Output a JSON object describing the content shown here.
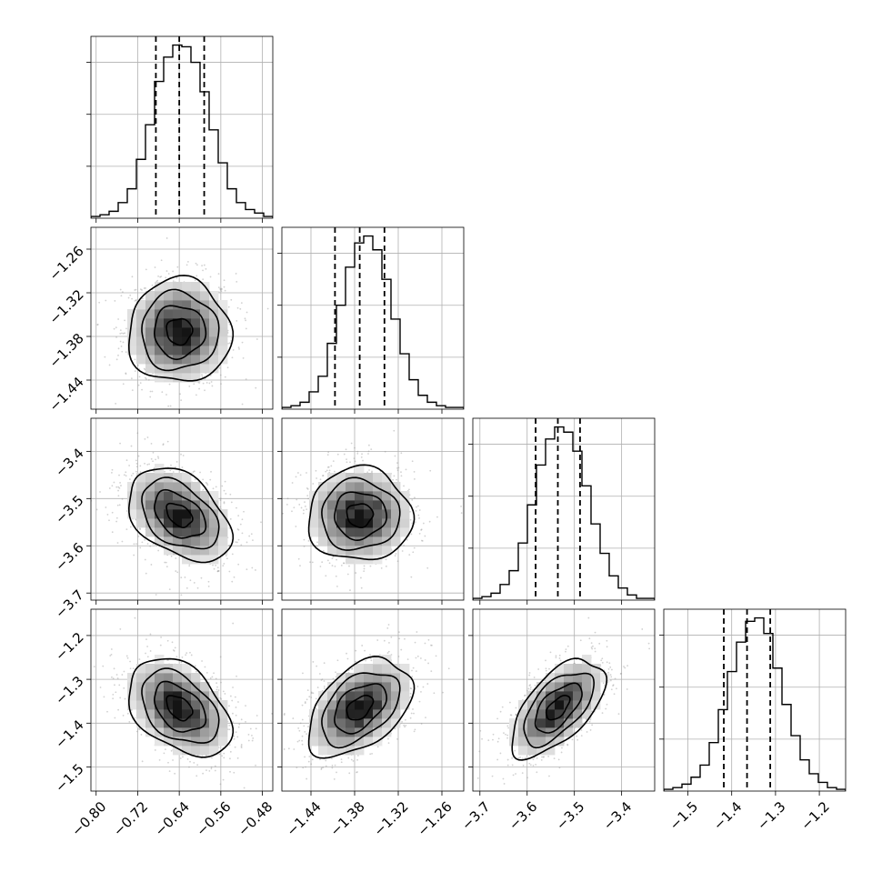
{
  "chart_data": {
    "type": "corner",
    "title": "",
    "grid": true,
    "parameters": [
      {
        "range": [
          -0.81,
          -0.46
        ],
        "ticks": [
          -0.8,
          -0.72,
          -0.64,
          -0.56,
          -0.48
        ],
        "tick_labels": [
          "−0.80",
          "−0.72",
          "−0.64",
          "−0.56",
          "−0.48"
        ],
        "median": -0.64,
        "q16": -0.685,
        "q84": -0.592,
        "sigma": 0.047
      },
      {
        "range": [
          -1.48,
          -1.23
        ],
        "ticks": [
          -1.44,
          -1.38,
          -1.32,
          -1.26
        ],
        "tick_labels": [
          "−1.44",
          "−1.38",
          "−1.32",
          "−1.26"
        ],
        "median": -1.373,
        "q16": -1.407,
        "q84": -1.339,
        "sigma": 0.034
      },
      {
        "range": [
          -3.715,
          -3.33
        ],
        "ticks": [
          -3.7,
          -3.6,
          -3.5,
          -3.4
        ],
        "tick_labels": [
          "−3.7",
          "−3.6",
          "−3.5",
          "−3.4"
        ],
        "median": -3.535,
        "q16": -3.582,
        "q84": -3.488,
        "sigma": 0.047
      },
      {
        "range": [
          -1.555,
          -1.14
        ],
        "ticks": [
          -1.5,
          -1.4,
          -1.3,
          -1.2
        ],
        "tick_labels": [
          "−1.5",
          "−1.4",
          "−1.3",
          "−1.2"
        ],
        "median": -1.365,
        "q16": -1.418,
        "q84": -1.312,
        "sigma": 0.053
      }
    ],
    "correlations": [
      [
        1.0,
        0.0,
        -0.4,
        -0.4
      ],
      [
        0.0,
        1.0,
        0.0,
        0.45
      ],
      [
        -0.4,
        0.0,
        1.0,
        0.6
      ],
      [
        -0.4,
        0.45,
        0.6,
        1.0
      ]
    ],
    "histograms": [
      [
        1,
        2,
        4,
        9,
        17,
        34,
        54,
        79,
        93,
        100,
        99,
        90,
        73,
        51,
        32,
        17,
        9,
        5,
        3,
        1
      ],
      [
        1,
        2,
        4,
        10,
        19,
        38,
        60,
        82,
        96,
        100,
        92,
        75,
        52,
        32,
        17,
        8,
        4,
        2,
        1,
        1
      ],
      [
        1,
        2,
        4,
        9,
        17,
        33,
        55,
        78,
        93,
        100,
        97,
        86,
        66,
        44,
        27,
        14,
        7,
        3,
        1,
        1
      ],
      [
        1,
        2,
        4,
        8,
        15,
        28,
        47,
        69,
        86,
        98,
        100,
        91,
        71,
        50,
        32,
        18,
        10,
        5,
        2,
        1
      ]
    ],
    "contour_levels_sigma": [
      0.5,
      1,
      1.5,
      2
    ],
    "quantile_lines": "dashed",
    "colors": {
      "line": "#000000",
      "grid": "#b0b0b0",
      "scatter": "#9a9a9a"
    }
  }
}
